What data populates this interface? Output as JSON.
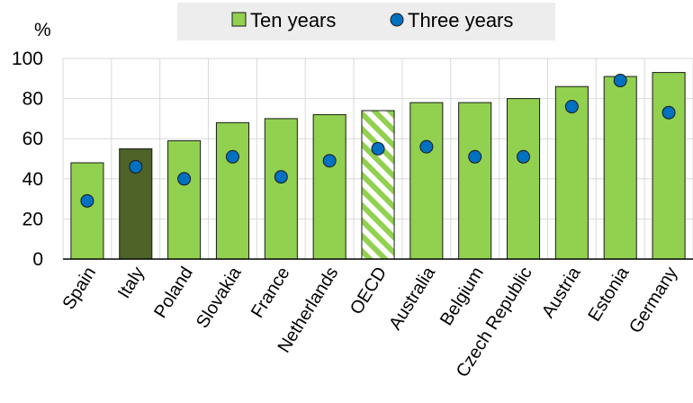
{
  "chart_data": {
    "type": "bar",
    "ylabel": "%",
    "ylim": [
      0,
      100
    ],
    "yticks": [
      "0",
      "20",
      "40",
      "60",
      "80",
      "100"
    ],
    "grid": true,
    "legend_position": "top",
    "categories": [
      "Spain",
      "Italy",
      "Poland",
      "Slovakia",
      "France",
      "Netherlands",
      "OECD",
      "Australia",
      "Belgium",
      "Czech Republic",
      "Austria",
      "Estonia",
      "Germany"
    ],
    "series": [
      {
        "name": "Ten years",
        "mark": "bar",
        "values": [
          48,
          55,
          59,
          68,
          70,
          72,
          74,
          78,
          78,
          80,
          86,
          91,
          93
        ]
      },
      {
        "name": "Three years",
        "mark": "dot",
        "values": [
          29,
          46,
          40,
          51,
          41,
          49,
          55,
          56,
          51,
          51,
          76,
          89,
          73
        ]
      }
    ],
    "highlight": {
      "Italy": "dark",
      "OECD": "hatched"
    },
    "colors": {
      "bar": "#92D050",
      "bar_edge": "#1a1a1a",
      "italy": "#4F6228",
      "dot": "#0070C0",
      "dot_edge": "#1a1a1a",
      "grid": "#d9d9d9",
      "legend_bg": "#ededed"
    }
  }
}
